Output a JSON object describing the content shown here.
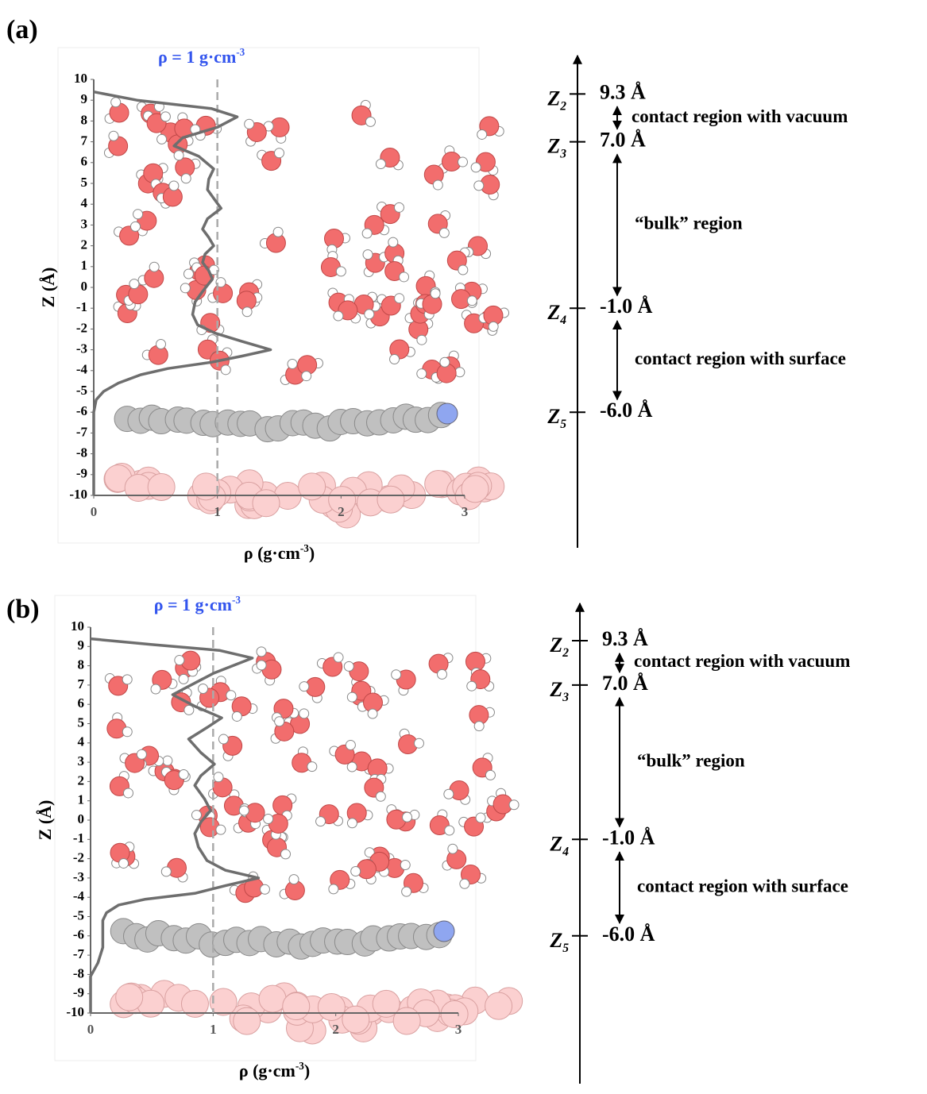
{
  "chart_data": [
    {
      "type": "line",
      "panel_label": "(a)",
      "ylabel": "Z (Å)",
      "xlabel": {
        "text": "ρ (g·cm",
        "sup": "-3",
        "close": ")"
      },
      "ref": {
        "value": 1,
        "text": "ρ = 1 g·cm",
        "sup": "-3"
      },
      "xlim": [
        0,
        3
      ],
      "xticks": [
        0,
        1,
        2,
        3
      ],
      "ylim": [
        -10,
        10
      ],
      "yticks": [
        -10,
        -9,
        -8,
        -7,
        -6,
        -5,
        -4,
        -3,
        -2,
        -1,
        0,
        1,
        2,
        3,
        4,
        5,
        6,
        7,
        8,
        9,
        10
      ],
      "color": "#6e6e6e",
      "x": [
        0,
        0.35,
        0.95,
        1.16,
        1.0,
        0.72,
        0.65,
        0.85,
        0.97,
        0.93,
        0.92,
        0.98,
        1.03,
        0.92,
        0.88,
        0.93,
        0.97,
        0.9,
        0.88,
        0.93,
        0.96,
        0.88,
        0.82,
        0.8,
        0.84,
        0.98,
        1.2,
        1.43,
        1.2,
        0.95,
        0.6,
        0.38,
        0.2,
        0.08,
        0.02,
        0,
        0
      ],
      "values": [
        9.4,
        9.0,
        8.6,
        8.2,
        7.7,
        7.2,
        6.8,
        6.3,
        5.7,
        5.2,
        4.7,
        4.2,
        3.8,
        3.3,
        2.8,
        2.4,
        2.0,
        1.6,
        1.2,
        0.8,
        0.4,
        -0.2,
        -0.7,
        -1.3,
        -1.8,
        -2.2,
        -2.6,
        -3.0,
        -3.3,
        -3.6,
        -3.9,
        -4.2,
        -4.6,
        -5.0,
        -5.4,
        -6.0,
        -10
      ],
      "levels": [
        {
          "symbol": "Z",
          "sub": "2",
          "value": 9.3,
          "label": "9.3 Å"
        },
        {
          "symbol": "Z",
          "sub": "3",
          "value": 7.0,
          "label": "7.0 Å"
        },
        {
          "symbol": "Z",
          "sub": "4",
          "value": -1.0,
          "label": "-1.0 Å"
        },
        {
          "symbol": "Z",
          "sub": "5",
          "value": -6.0,
          "label": "-6.0 Å"
        }
      ],
      "regions": [
        "contact region  with vacuum",
        "“bulk” region",
        "contact region  with surface"
      ]
    },
    {
      "type": "line",
      "panel_label": "(b)",
      "ylabel": "Z (Å)",
      "xlabel": {
        "text": "ρ (g·cm",
        "sup": "-3",
        "close": ")"
      },
      "ref": {
        "value": 1,
        "text": "ρ = 1 g·cm",
        "sup": "-3"
      },
      "xlim": [
        0,
        3
      ],
      "xticks": [
        0,
        1,
        2,
        3
      ],
      "ylim": [
        -10,
        10
      ],
      "yticks": [
        -10,
        -9,
        -8,
        -7,
        -6,
        -5,
        -4,
        -3,
        -2,
        -1,
        0,
        1,
        2,
        3,
        4,
        5,
        6,
        7,
        8,
        9,
        10
      ],
      "color": "#6e6e6e",
      "x": [
        0,
        0.5,
        1.05,
        1.32,
        1.0,
        0.67,
        0.85,
        1.07,
        0.95,
        0.8,
        0.9,
        1.01,
        0.9,
        0.85,
        0.93,
        0.98,
        0.9,
        0.85,
        0.88,
        0.95,
        1.1,
        1.37,
        1.1,
        0.85,
        0.45,
        0.23,
        0.13,
        0.1,
        0.1,
        0.06,
        0,
        0
      ],
      "values": [
        9.4,
        9.1,
        8.8,
        8.4,
        7.6,
        6.5,
        5.9,
        5.3,
        4.8,
        4.2,
        3.5,
        2.9,
        2.3,
        1.8,
        1.1,
        0.5,
        -0.1,
        -0.7,
        -1.4,
        -2.1,
        -2.6,
        -3.0,
        -3.4,
        -3.8,
        -4.1,
        -4.4,
        -4.8,
        -5.2,
        -6.6,
        -7.4,
        -8.1,
        -10
      ],
      "levels": [
        {
          "symbol": "Z",
          "sub": "2",
          "value": 9.3,
          "label": "9.3 Å"
        },
        {
          "symbol": "Z",
          "sub": "3",
          "value": 7.0,
          "label": "7.0 Å"
        },
        {
          "symbol": "Z",
          "sub": "4",
          "value": -1.0,
          "label": "-1.0 Å"
        },
        {
          "symbol": "Z",
          "sub": "5",
          "value": -6.0,
          "label": "-6.0 Å"
        }
      ],
      "regions": [
        "contact region  with vacuum",
        "“bulk” region",
        "contact region  with surface"
      ]
    }
  ]
}
